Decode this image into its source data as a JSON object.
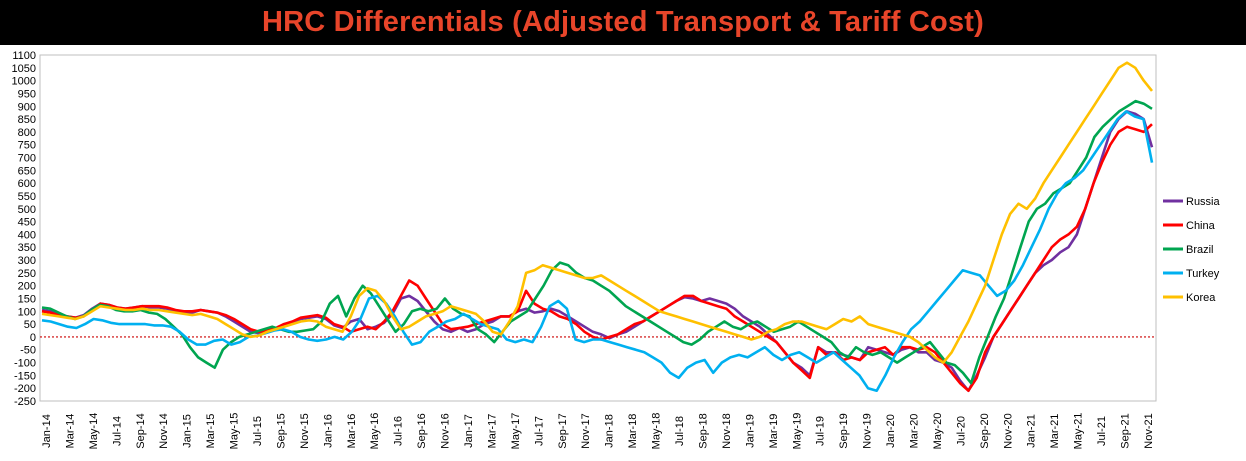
{
  "chart_data": {
    "type": "line",
    "title": "HRC Differentials (Adjusted Transport & Tariff Cost)",
    "ylim": [
      -250,
      1100
    ],
    "y_ticks": [
      "1100",
      "1050",
      "1000",
      "950",
      "900",
      "850",
      "800",
      "750",
      "700",
      "650",
      "600",
      "550",
      "500",
      "450",
      "400",
      "350",
      "300",
      "250",
      "200",
      "150",
      "100",
      "50",
      "0",
      "-50",
      "-100",
      "-150",
      "-200",
      "-250"
    ],
    "x_ticks": [
      "Jan-14",
      "Mar-14",
      "May-14",
      "Jul-14",
      "Sep-14",
      "Nov-14",
      "Jan-15",
      "Mar-15",
      "May-15",
      "Jul-15",
      "Sep-15",
      "Nov-15",
      "Jan-16",
      "Mar-16",
      "May-16",
      "Jul-16",
      "Sep-16",
      "Nov-16",
      "Jan-17",
      "Mar-17",
      "May-17",
      "Jul-17",
      "Sep-17",
      "Nov-17",
      "Jan-18",
      "Mar-18",
      "May-18",
      "Jul-18",
      "Sep-18",
      "Nov-18",
      "Jan-19",
      "Mar-19",
      "May-19",
      "Jul-19",
      "Sep-19",
      "Nov-19",
      "Jan-20",
      "Mar-20",
      "May-20",
      "Jul-20",
      "Sep-20",
      "Nov-20",
      "Jan-21",
      "Mar-21",
      "May-21",
      "Jul-21",
      "Sep-21",
      "Nov-21"
    ],
    "zero_line": {
      "color": "#cc0000",
      "style": "dotted"
    },
    "legend_position": "right",
    "series": [
      {
        "name": "Russia",
        "color": "#7030a0",
        "values": [
          105,
          100,
          90,
          80,
          75,
          85,
          110,
          130,
          125,
          115,
          110,
          115,
          120,
          115,
          115,
          110,
          100,
          95,
          95,
          105,
          100,
          95,
          80,
          60,
          40,
          20,
          15,
          20,
          30,
          50,
          55,
          70,
          75,
          80,
          70,
          45,
          35,
          60,
          70,
          30,
          40,
          55,
          90,
          150,
          160,
          140,
          100,
          60,
          30,
          20,
          35,
          20,
          30,
          50,
          60,
          80,
          80,
          100,
          110,
          95,
          100,
          110,
          100,
          80,
          60,
          40,
          20,
          10,
          -5,
          10,
          20,
          40,
          60,
          80,
          100,
          120,
          140,
          155,
          150,
          140,
          150,
          140,
          130,
          110,
          80,
          60,
          40,
          10,
          -20,
          -60,
          -100,
          -120,
          -150,
          -40,
          -60,
          -60,
          -70,
          -80,
          -90,
          -40,
          -50,
          -60,
          -70,
          -50,
          -40,
          -60,
          -60,
          -90,
          -100,
          -120,
          -170,
          -210,
          -150,
          -80,
          0,
          50,
          100,
          150,
          200,
          250,
          280,
          300,
          330,
          350,
          400,
          500,
          600,
          700,
          800,
          850,
          880,
          870,
          850,
          740
        ]
      },
      {
        "name": "China",
        "color": "#ff0000",
        "values": [
          100,
          95,
          85,
          80,
          75,
          80,
          105,
          130,
          125,
          115,
          110,
          115,
          120,
          120,
          120,
          115,
          105,
          100,
          100,
          105,
          100,
          95,
          85,
          70,
          50,
          30,
          20,
          25,
          35,
          50,
          60,
          75,
          80,
          85,
          75,
          50,
          40,
          20,
          30,
          40,
          30,
          60,
          100,
          160,
          220,
          200,
          150,
          100,
          50,
          30,
          35,
          40,
          50,
          60,
          70,
          80,
          80,
          100,
          180,
          130,
          110,
          100,
          80,
          70,
          50,
          20,
          0,
          -10,
          0,
          10,
          30,
          50,
          60,
          80,
          100,
          120,
          140,
          160,
          160,
          140,
          130,
          120,
          110,
          80,
          60,
          40,
          20,
          0,
          -20,
          -60,
          -100,
          -130,
          -160,
          -40,
          -70,
          -60,
          -90,
          -80,
          -90,
          -60,
          -50,
          -40,
          -70,
          -40,
          -40,
          -50,
          -40,
          -60,
          -100,
          -140,
          -180,
          -210,
          -160,
          -60,
          0,
          50,
          100,
          150,
          200,
          250,
          300,
          350,
          380,
          400,
          430,
          500,
          600,
          680,
          750,
          800,
          820,
          810,
          800,
          830
        ]
      },
      {
        "name": "Brazil",
        "color": "#00a550",
        "values": [
          115,
          110,
          95,
          80,
          70,
          80,
          105,
          125,
          120,
          105,
          100,
          100,
          105,
          95,
          90,
          70,
          40,
          10,
          -40,
          -80,
          -100,
          -120,
          -50,
          -20,
          0,
          10,
          20,
          30,
          40,
          30,
          20,
          20,
          25,
          30,
          60,
          130,
          160,
          80,
          150,
          200,
          170,
          120,
          70,
          20,
          50,
          100,
          110,
          100,
          110,
          150,
          110,
          90,
          80,
          30,
          10,
          -20,
          20,
          60,
          80,
          100,
          150,
          200,
          260,
          290,
          280,
          250,
          230,
          220,
          200,
          180,
          150,
          120,
          100,
          80,
          60,
          40,
          20,
          0,
          -20,
          -30,
          -10,
          20,
          40,
          60,
          40,
          30,
          50,
          60,
          40,
          20,
          30,
          40,
          60,
          40,
          20,
          0,
          -20,
          -60,
          -80,
          -40,
          -60,
          -70,
          -60,
          -80,
          -100,
          -80,
          -60,
          -40,
          -20,
          -60,
          -100,
          -110,
          -140,
          -180,
          -80,
          0,
          80,
          150,
          250,
          350,
          450,
          500,
          520,
          560,
          580,
          600,
          650,
          700,
          780,
          820,
          850,
          880,
          900,
          920,
          910,
          890
        ]
      },
      {
        "name": "Turkey",
        "color": "#00b0f0",
        "values": [
          65,
          60,
          50,
          40,
          35,
          50,
          70,
          65,
          55,
          50,
          50,
          50,
          50,
          45,
          45,
          40,
          20,
          -10,
          -30,
          -30,
          -15,
          -10,
          -30,
          -20,
          0,
          5,
          15,
          25,
          30,
          20,
          0,
          -10,
          -15,
          -10,
          0,
          -10,
          20,
          70,
          150,
          160,
          130,
          80,
          20,
          -30,
          -20,
          20,
          40,
          60,
          70,
          90,
          70,
          50,
          40,
          30,
          -10,
          -20,
          -10,
          -20,
          40,
          120,
          140,
          110,
          -10,
          -20,
          -10,
          -10,
          -20,
          -30,
          -40,
          -50,
          -60,
          -80,
          -100,
          -140,
          -160,
          -120,
          -100,
          -90,
          -140,
          -100,
          -80,
          -70,
          -80,
          -60,
          -40,
          -70,
          -90,
          -70,
          -60,
          -80,
          -100,
          -80,
          -60,
          -90,
          -120,
          -150,
          -200,
          -210,
          -150,
          -80,
          -20,
          30,
          60,
          100,
          140,
          180,
          220,
          260,
          250,
          240,
          200,
          160,
          180,
          220,
          280,
          350,
          420,
          500,
          560,
          600,
          620,
          650,
          700,
          750,
          800,
          850,
          880,
          860,
          850,
          680
        ]
      },
      {
        "name": "Korea",
        "color": "#ffc000",
        "values": [
          90,
          85,
          80,
          75,
          70,
          80,
          100,
          120,
          115,
          110,
          105,
          105,
          110,
          105,
          105,
          100,
          95,
          90,
          85,
          90,
          80,
          70,
          50,
          30,
          10,
          0,
          5,
          20,
          30,
          40,
          50,
          60,
          65,
          60,
          40,
          30,
          20,
          80,
          160,
          190,
          180,
          140,
          80,
          30,
          40,
          60,
          80,
          90,
          100,
          120,
          110,
          100,
          90,
          60,
          20,
          10,
          60,
          120,
          250,
          260,
          280,
          270,
          260,
          250,
          240,
          230,
          230,
          240,
          220,
          200,
          180,
          160,
          140,
          120,
          100,
          90,
          80,
          70,
          60,
          50,
          40,
          30,
          20,
          10,
          0,
          -10,
          0,
          20,
          30,
          50,
          60,
          60,
          50,
          40,
          30,
          50,
          70,
          60,
          80,
          50,
          40,
          30,
          20,
          10,
          0,
          -20,
          -50,
          -80,
          -100,
          -60,
          0,
          60,
          130,
          200,
          300,
          400,
          480,
          520,
          500,
          540,
          600,
          650,
          700,
          750,
          800,
          850,
          900,
          950,
          1000,
          1050,
          1070,
          1050,
          1000,
          960
        ]
      }
    ]
  }
}
